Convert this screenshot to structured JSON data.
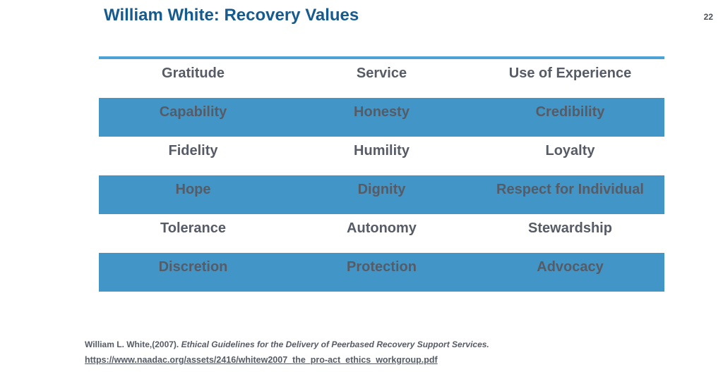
{
  "slide": {
    "title": "William White: Recovery Values",
    "page_number": "22",
    "colors": {
      "band_blue": "#4296c7",
      "top_line": "#4ca2d4",
      "text_gray": "#565b66",
      "title_blue": "#175b8e",
      "page_number_gray": "#4b505a"
    },
    "table": {
      "rows": [
        {
          "shaded": false,
          "cells": [
            "Gratitude",
            "Service",
            "Use of Experience"
          ]
        },
        {
          "shaded": true,
          "cells": [
            "Capability",
            "Honesty",
            "Credibility"
          ]
        },
        {
          "shaded": false,
          "cells": [
            "Fidelity",
            "Humility",
            "Loyalty"
          ]
        },
        {
          "shaded": true,
          "cells": [
            "Hope",
            "Dignity",
            "Respect for Individual"
          ]
        },
        {
          "shaded": false,
          "cells": [
            "Tolerance",
            "Autonomy",
            "Stewardship"
          ]
        },
        {
          "shaded": true,
          "cells": [
            "Discretion",
            "Protection",
            "Advocacy"
          ]
        }
      ]
    },
    "citation": {
      "author": "William L. White,(2007). ",
      "work_title": "Ethical Guidelines for the Delivery of Peerbased Recovery Support Services.",
      "url": "https://www.naadac.org/assets/2416/whitew2007_the_pro-act_ethics_workgroup.pdf"
    }
  }
}
